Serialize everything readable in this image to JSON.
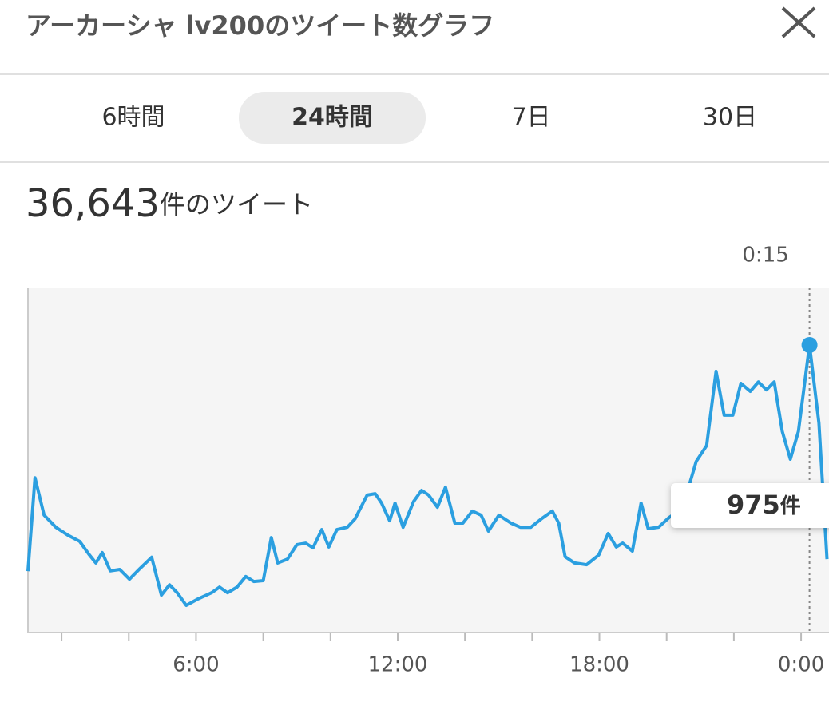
{
  "header": {
    "title": "アーカーシャ lv200のツイート数グラフ"
  },
  "tabs": {
    "items": [
      "6時間",
      "24時間",
      "7日",
      "30日"
    ],
    "active": 1
  },
  "summary": {
    "count": "36,643",
    "suffix": "件のツイート"
  },
  "chart_data": {
    "type": "line",
    "color": "#2b9fe0",
    "x": [
      1.0,
      1.21,
      1.48,
      1.83,
      2.19,
      2.54,
      2.83,
      3.02,
      3.21,
      3.45,
      3.73,
      4.02,
      4.33,
      4.68,
      4.97,
      5.21,
      5.44,
      5.71,
      6.06,
      6.46,
      6.7,
      6.94,
      7.22,
      7.48,
      7.72,
      8.0,
      8.24,
      8.43,
      8.72,
      9.0,
      9.26,
      9.48,
      9.74,
      9.95,
      10.19,
      10.5,
      10.73,
      11.09,
      11.33,
      11.52,
      11.76,
      11.92,
      12.16,
      12.47,
      12.71,
      12.92,
      13.18,
      13.42,
      13.7,
      13.94,
      14.22,
      14.48,
      14.7,
      15.01,
      15.37,
      15.65,
      15.96,
      16.27,
      16.6,
      16.79,
      16.98,
      17.26,
      17.62,
      17.98,
      18.26,
      18.5,
      18.69,
      18.98,
      19.24,
      19.45,
      19.76,
      20.07,
      20.36,
      20.64,
      20.88,
      21.19,
      21.47,
      21.71,
      21.97,
      22.21,
      22.49,
      22.73,
      22.97,
      23.2,
      23.44,
      23.68,
      23.92,
      24.25,
      24.53,
      24.77
    ],
    "values": [
      208,
      525,
      398,
      357,
      330,
      309,
      263,
      236,
      271,
      209,
      214,
      181,
      217,
      255,
      127,
      162,
      135,
      92,
      114,
      135,
      154,
      135,
      154,
      190,
      173,
      176,
      322,
      236,
      249,
      298,
      303,
      287,
      349,
      290,
      349,
      357,
      385,
      466,
      471,
      439,
      379,
      439,
      357,
      444,
      482,
      466,
      425,
      493,
      371,
      371,
      412,
      398,
      344,
      398,
      371,
      357,
      357,
      385,
      412,
      371,
      257,
      236,
      230,
      263,
      336,
      290,
      303,
      276,
      439,
      352,
      357,
      390,
      412,
      487,
      580,
      634,
      886,
      737,
      737,
      845,
      818,
      850,
      823,
      850,
      682,
      588,
      682,
      975,
      710,
      249
    ],
    "xlim": [
      1.0,
      24.83
    ],
    "ylim": [
      0,
      1170
    ],
    "xticks": [
      {
        "value": 2,
        "label": null
      },
      {
        "value": 4,
        "label": null
      },
      {
        "value": 6,
        "label": "6:00"
      },
      {
        "value": 8,
        "label": null
      },
      {
        "value": 10,
        "label": null
      },
      {
        "value": 12,
        "label": "12:00"
      },
      {
        "value": 14,
        "label": null
      },
      {
        "value": 16,
        "label": null
      },
      {
        "value": 18,
        "label": "18:00"
      },
      {
        "value": 20,
        "label": null
      },
      {
        "value": 22,
        "label": null
      },
      {
        "value": 24,
        "label": "0:00"
      }
    ],
    "highlight": {
      "index": 87,
      "time": "0:15",
      "unit": "件"
    }
  }
}
